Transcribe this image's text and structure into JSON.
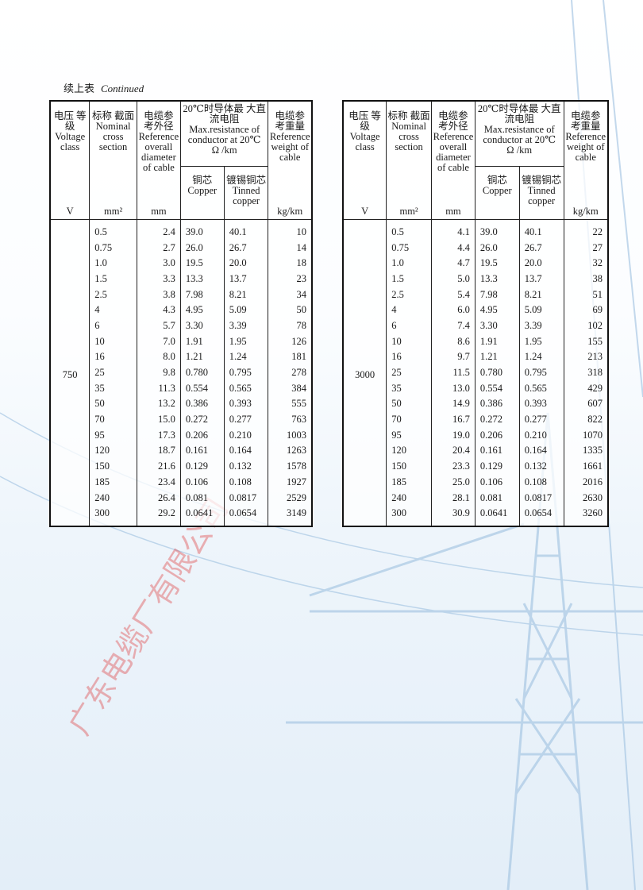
{
  "caption": {
    "zh": "续上表",
    "en": "Continued"
  },
  "headers": {
    "voltage": {
      "zh": "电压 等级",
      "en": "Voltage class",
      "unit": "V"
    },
    "section": {
      "zh": "标称 截面",
      "en": "Nominal cross section",
      "unit": "mm²"
    },
    "diameter": {
      "zh": "电缆参 考外径",
      "en": "Reference overall diameter of cable",
      "unit": "mm"
    },
    "resistance": {
      "zh": "20℃时导体最 大直流电阻",
      "en": "Max.resistance of conductor at 20℃",
      "unit": "Ω /km"
    },
    "copper": {
      "zh": "铜芯",
      "en": "Copper"
    },
    "tinned": {
      "zh": "镀锡铜芯",
      "en": "Tinned copper"
    },
    "weight": {
      "zh": "电缆参 考重量",
      "en": "Reference weight of cable",
      "unit": "kg/km"
    }
  },
  "tables": [
    {
      "voltage": "750",
      "rows": [
        [
          "0.5",
          "2.4",
          "39.0",
          "40.1",
          "10"
        ],
        [
          "0.75",
          "2.7",
          "26.0",
          "26.7",
          "14"
        ],
        [
          "1.0",
          "3.0",
          "19.5",
          "20.0",
          "18"
        ],
        [
          "1.5",
          "3.3",
          "13.3",
          "13.7",
          "23"
        ],
        [
          "2.5",
          "3.8",
          "7.98",
          "8.21",
          "34"
        ],
        [
          "4",
          "4.3",
          "4.95",
          "5.09",
          "50"
        ],
        [
          "6",
          "5.7",
          "3.30",
          "3.39",
          "78"
        ],
        [
          "10",
          "7.0",
          "1.91",
          "1.95",
          "126"
        ],
        [
          "16",
          "8.0",
          "1.21",
          "1.24",
          "181"
        ],
        [
          "25",
          "9.8",
          "0.780",
          "0.795",
          "278"
        ],
        [
          "35",
          "11.3",
          "0.554",
          "0.565",
          "384"
        ],
        [
          "50",
          "13.2",
          "0.386",
          "0.393",
          "555"
        ],
        [
          "70",
          "15.0",
          "0.272",
          "0.277",
          "763"
        ],
        [
          "95",
          "17.3",
          "0.206",
          "0.210",
          "1003"
        ],
        [
          "120",
          "18.7",
          "0.161",
          "0.164",
          "1263"
        ],
        [
          "150",
          "21.6",
          "0.129",
          "0.132",
          "1578"
        ],
        [
          "185",
          "23.4",
          "0.106",
          "0.108",
          "1927"
        ],
        [
          "240",
          "26.4",
          "0.081",
          "0.0817",
          "2529"
        ],
        [
          "300",
          "29.2",
          "0.0641",
          "0.0654",
          "3149"
        ]
      ]
    },
    {
      "voltage": "3000",
      "rows": [
        [
          "0.5",
          "4.1",
          "39.0",
          "40.1",
          "22"
        ],
        [
          "0.75",
          "4.4",
          "26.0",
          "26.7",
          "27"
        ],
        [
          "1.0",
          "4.7",
          "19.5",
          "20.0",
          "32"
        ],
        [
          "1.5",
          "5.0",
          "13.3",
          "13.7",
          "38"
        ],
        [
          "2.5",
          "5.4",
          "7.98",
          "8.21",
          "51"
        ],
        [
          "4",
          "6.0",
          "4.95",
          "5.09",
          "69"
        ],
        [
          "6",
          "7.4",
          "3.30",
          "3.39",
          "102"
        ],
        [
          "10",
          "8.6",
          "1.91",
          "1.95",
          "155"
        ],
        [
          "16",
          "9.7",
          "1.21",
          "1.24",
          "213"
        ],
        [
          "25",
          "11.5",
          "0.780",
          "0.795",
          "318"
        ],
        [
          "35",
          "13.0",
          "0.554",
          "0.565",
          "429"
        ],
        [
          "50",
          "14.9",
          "0.386",
          "0.393",
          "607"
        ],
        [
          "70",
          "16.7",
          "0.272",
          "0.277",
          "822"
        ],
        [
          "95",
          "19.0",
          "0.206",
          "0.210",
          "1070"
        ],
        [
          "120",
          "20.4",
          "0.161",
          "0.164",
          "1335"
        ],
        [
          "150",
          "23.3",
          "0.129",
          "0.132",
          "1661"
        ],
        [
          "185",
          "25.0",
          "0.106",
          "0.108",
          "2016"
        ],
        [
          "240",
          "28.1",
          "0.081",
          "0.0817",
          "2630"
        ],
        [
          "300",
          "30.9",
          "0.0641",
          "0.0654",
          "3260"
        ]
      ]
    }
  ],
  "watermark": {
    "company": "广东电缆厂有限公司",
    "color": "#dc2828"
  },
  "background": {
    "accent": "#a9c8e4",
    "image": "power-transmission-tower"
  }
}
